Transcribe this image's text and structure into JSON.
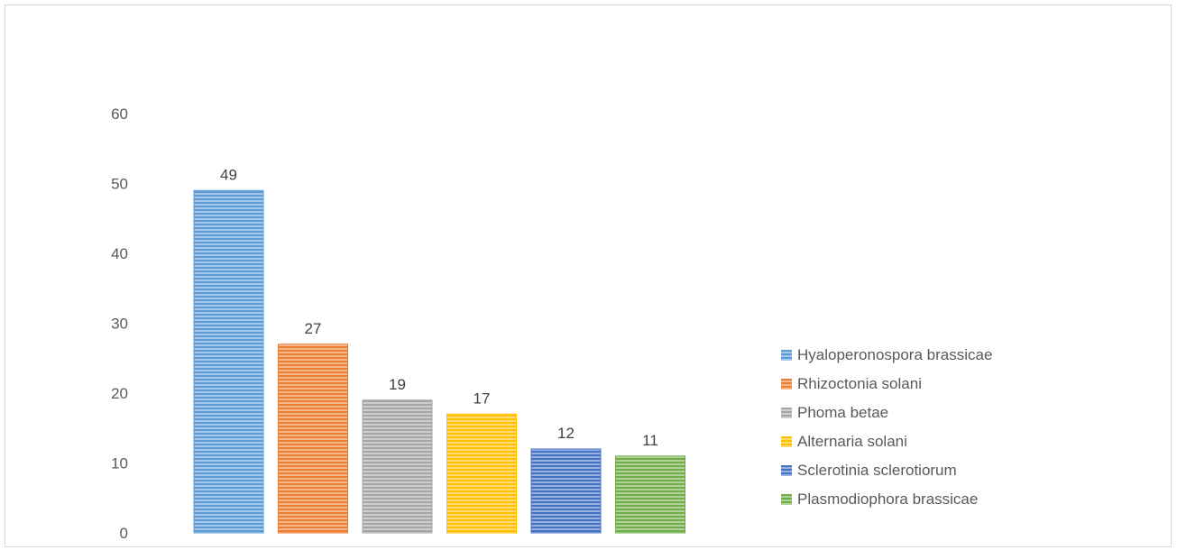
{
  "chart_data": {
    "type": "bar",
    "categories": [
      "Hyaloperonospora brassicae",
      "Rhizoctonia solani",
      "Phoma betae",
      "Alternaria solani",
      "Sclerotinia sclerotiorum",
      "Plasmodiophora brassicae"
    ],
    "values": [
      49,
      27,
      19,
      17,
      12,
      11
    ],
    "colors": [
      "#5b9bd5",
      "#ed7d31",
      "#a5a5a5",
      "#ffc000",
      "#4472c4",
      "#70ad47"
    ],
    "yticks": [
      0,
      10,
      20,
      30,
      40,
      50,
      60
    ],
    "ylim": [
      0,
      60
    ],
    "data_labels": true,
    "fill_pattern": "horizontal-stripes",
    "grid": false,
    "legend": "right",
    "title": "",
    "xlabel": "",
    "ylabel": ""
  }
}
